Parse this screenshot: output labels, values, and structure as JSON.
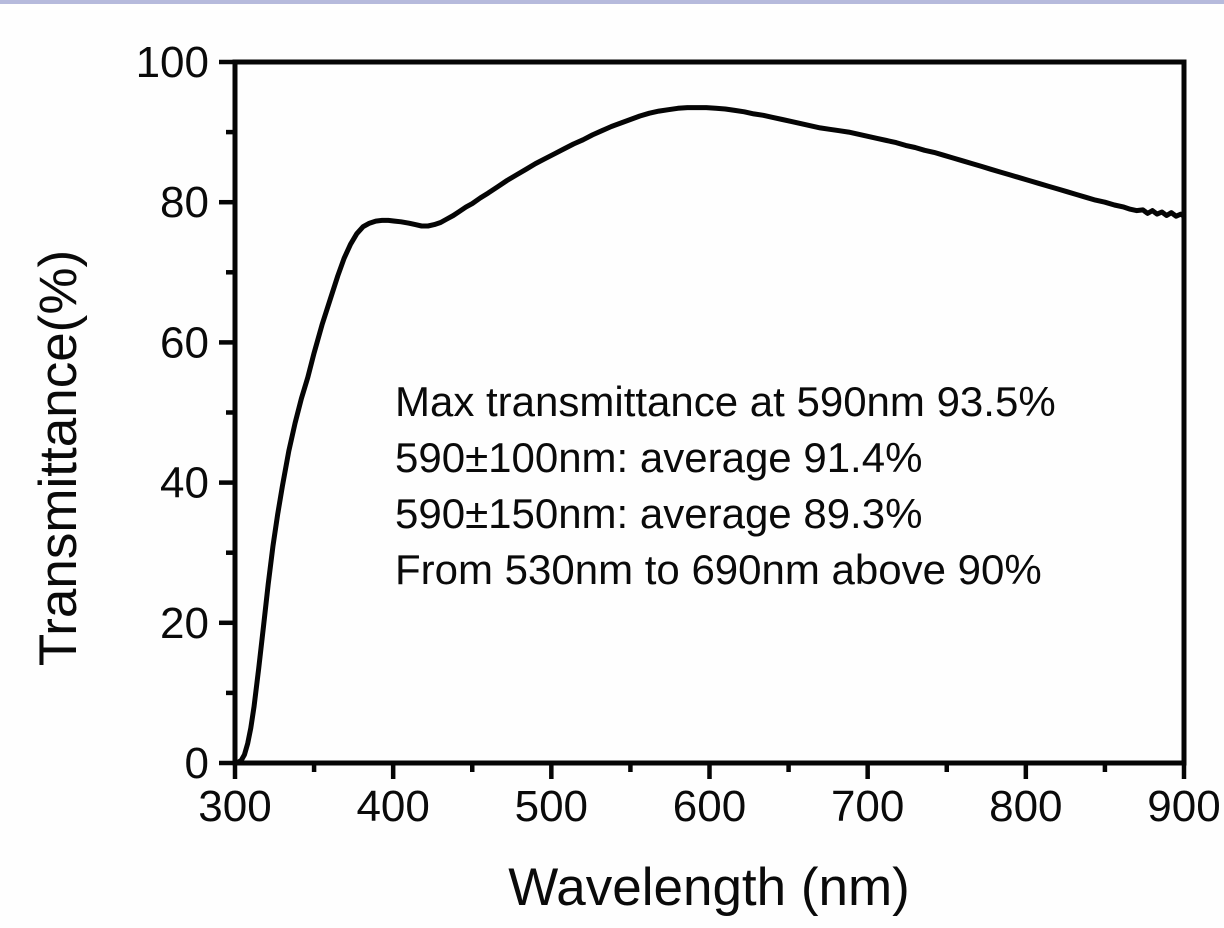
{
  "figure": {
    "background": "#fefefe",
    "top_border_color": "#b6badc",
    "line_color": "#050505"
  },
  "chart_data": {
    "type": "line",
    "title": "",
    "xlabel": "Wavelength (nm)",
    "ylabel": "Transmittance(%)",
    "xlim": [
      300,
      900
    ],
    "ylim": [
      0,
      100
    ],
    "grid": false,
    "legend_position": "none",
    "x_major_ticks": [
      300,
      400,
      500,
      600,
      700,
      800,
      900
    ],
    "x_minor_ticks": [
      350,
      450,
      550,
      650,
      750,
      850
    ],
    "y_major_ticks": [
      0,
      20,
      40,
      60,
      80,
      100
    ],
    "y_minor_ticks": [
      10,
      30,
      50,
      70,
      90
    ],
    "annotation": {
      "lines": [
        "Max transmittance at 590nm 93.5%",
        "590±100nm: average 91.4%",
        "590±150nm: average 89.3%",
        "From 530nm to 690nm above 90%"
      ]
    },
    "series": [
      {
        "name": "transmittance",
        "color": "#050505",
        "x": [
          300,
          302,
          304,
          306,
          308,
          310,
          312,
          315,
          318,
          321,
          324,
          327,
          330,
          334,
          338,
          342,
          346,
          350,
          355,
          360,
          365,
          369,
          373,
          377,
          381,
          385,
          389,
          393,
          397,
          401,
          405,
          410,
          414,
          418,
          422,
          426,
          430,
          434,
          438,
          442,
          446,
          450,
          455,
          460,
          466,
          472,
          478,
          484,
          490,
          496,
          502,
          508,
          514,
          520,
          526,
          532,
          538,
          544,
          550,
          556,
          562,
          568,
          574,
          580,
          586,
          592,
          598,
          604,
          610,
          616,
          622,
          628,
          634,
          640,
          646,
          652,
          658,
          664,
          670,
          676,
          682,
          688,
          694,
          700,
          706,
          712,
          718,
          724,
          730,
          736,
          742,
          748,
          754,
          760,
          766,
          772,
          778,
          784,
          790,
          796,
          802,
          808,
          814,
          820,
          826,
          832,
          838,
          844,
          850,
          856,
          862,
          866,
          870,
          874,
          877,
          880,
          883,
          886,
          889,
          892,
          895,
          898,
          900
        ],
        "y": [
          0,
          0.1,
          0.4,
          1.2,
          2.8,
          5,
          8,
          13.5,
          19.5,
          25.5,
          31,
          35.5,
          39.5,
          44.5,
          48.5,
          52,
          55,
          58.5,
          62.5,
          66,
          69.5,
          72,
          74,
          75.5,
          76.5,
          77,
          77.3,
          77.4,
          77.4,
          77.3,
          77.2,
          77,
          76.8,
          76.6,
          76.6,
          76.8,
          77.1,
          77.6,
          78.1,
          78.7,
          79.3,
          79.8,
          80.6,
          81.3,
          82.2,
          83.1,
          83.9,
          84.7,
          85.5,
          86.2,
          86.9,
          87.6,
          88.3,
          88.9,
          89.6,
          90.2,
          90.8,
          91.3,
          91.8,
          92.3,
          92.7,
          93,
          93.2,
          93.4,
          93.5,
          93.5,
          93.5,
          93.4,
          93.3,
          93.1,
          92.9,
          92.6,
          92.4,
          92.1,
          91.8,
          91.5,
          91.2,
          90.9,
          90.6,
          90.4,
          90.2,
          90,
          89.7,
          89.4,
          89.1,
          88.8,
          88.5,
          88.1,
          87.8,
          87.4,
          87.1,
          86.7,
          86.3,
          85.9,
          85.5,
          85.1,
          84.7,
          84.3,
          83.9,
          83.5,
          83.1,
          82.7,
          82.3,
          81.9,
          81.5,
          81.1,
          80.7,
          80.3,
          80,
          79.6,
          79.3,
          79,
          78.8,
          78.9,
          78.4,
          78.8,
          78.3,
          78.6,
          78.1,
          78.5,
          78,
          78.3,
          78
        ]
      }
    ],
    "key_points": {
      "max_transmittance_percent": 93.5,
      "max_transmittance_wavelength_nm": 590,
      "average_590pm100nm_percent": 91.4,
      "average_590pm150nm_percent": 89.3,
      "above_90_range_nm": [
        530,
        690
      ]
    }
  }
}
